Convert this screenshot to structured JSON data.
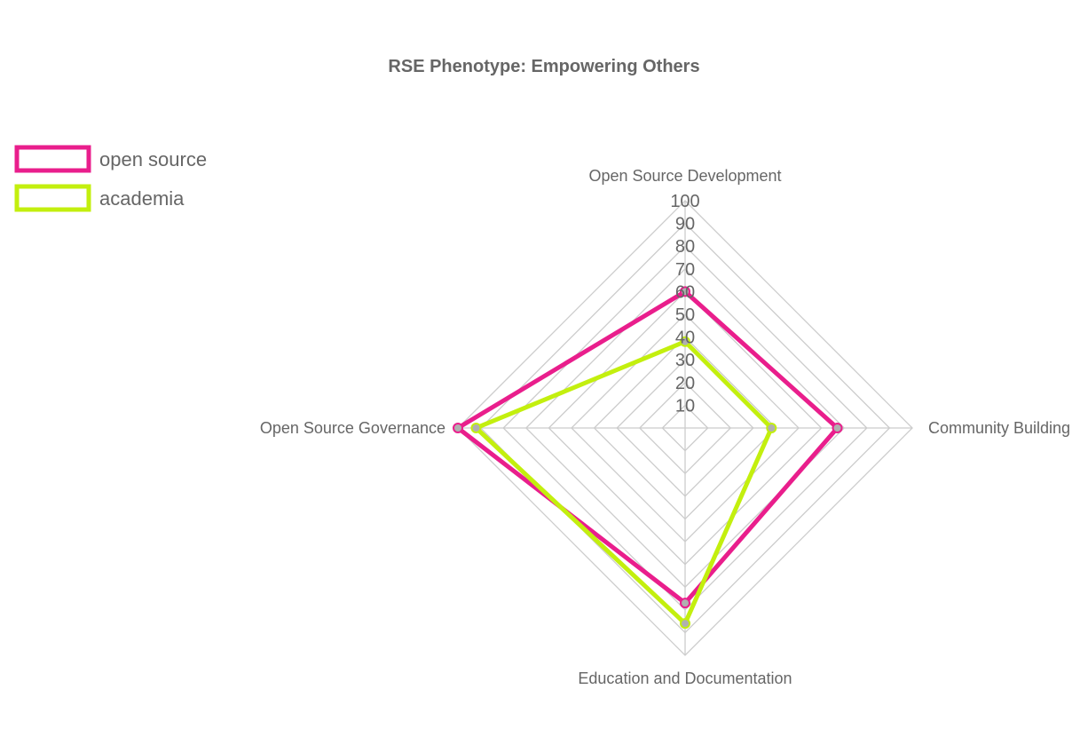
{
  "chart_data": {
    "type": "radar",
    "title": "RSE Phenotype: Empowering Others",
    "axes": [
      "Open Source Development",
      "Community Building",
      "Education and Documentation",
      "Open Source Governance"
    ],
    "rlim": [
      0,
      100
    ],
    "ticks": [
      10,
      20,
      30,
      40,
      50,
      60,
      70,
      80,
      90,
      100
    ],
    "grid": true,
    "legend_position": "top-left",
    "series": [
      {
        "name": "open source",
        "color": "#e91e8c",
        "values": [
          60,
          67,
          77,
          100
        ]
      },
      {
        "name": "academia",
        "color": "#c3ef0e",
        "values": [
          38,
          38,
          86,
          92
        ]
      }
    ]
  }
}
